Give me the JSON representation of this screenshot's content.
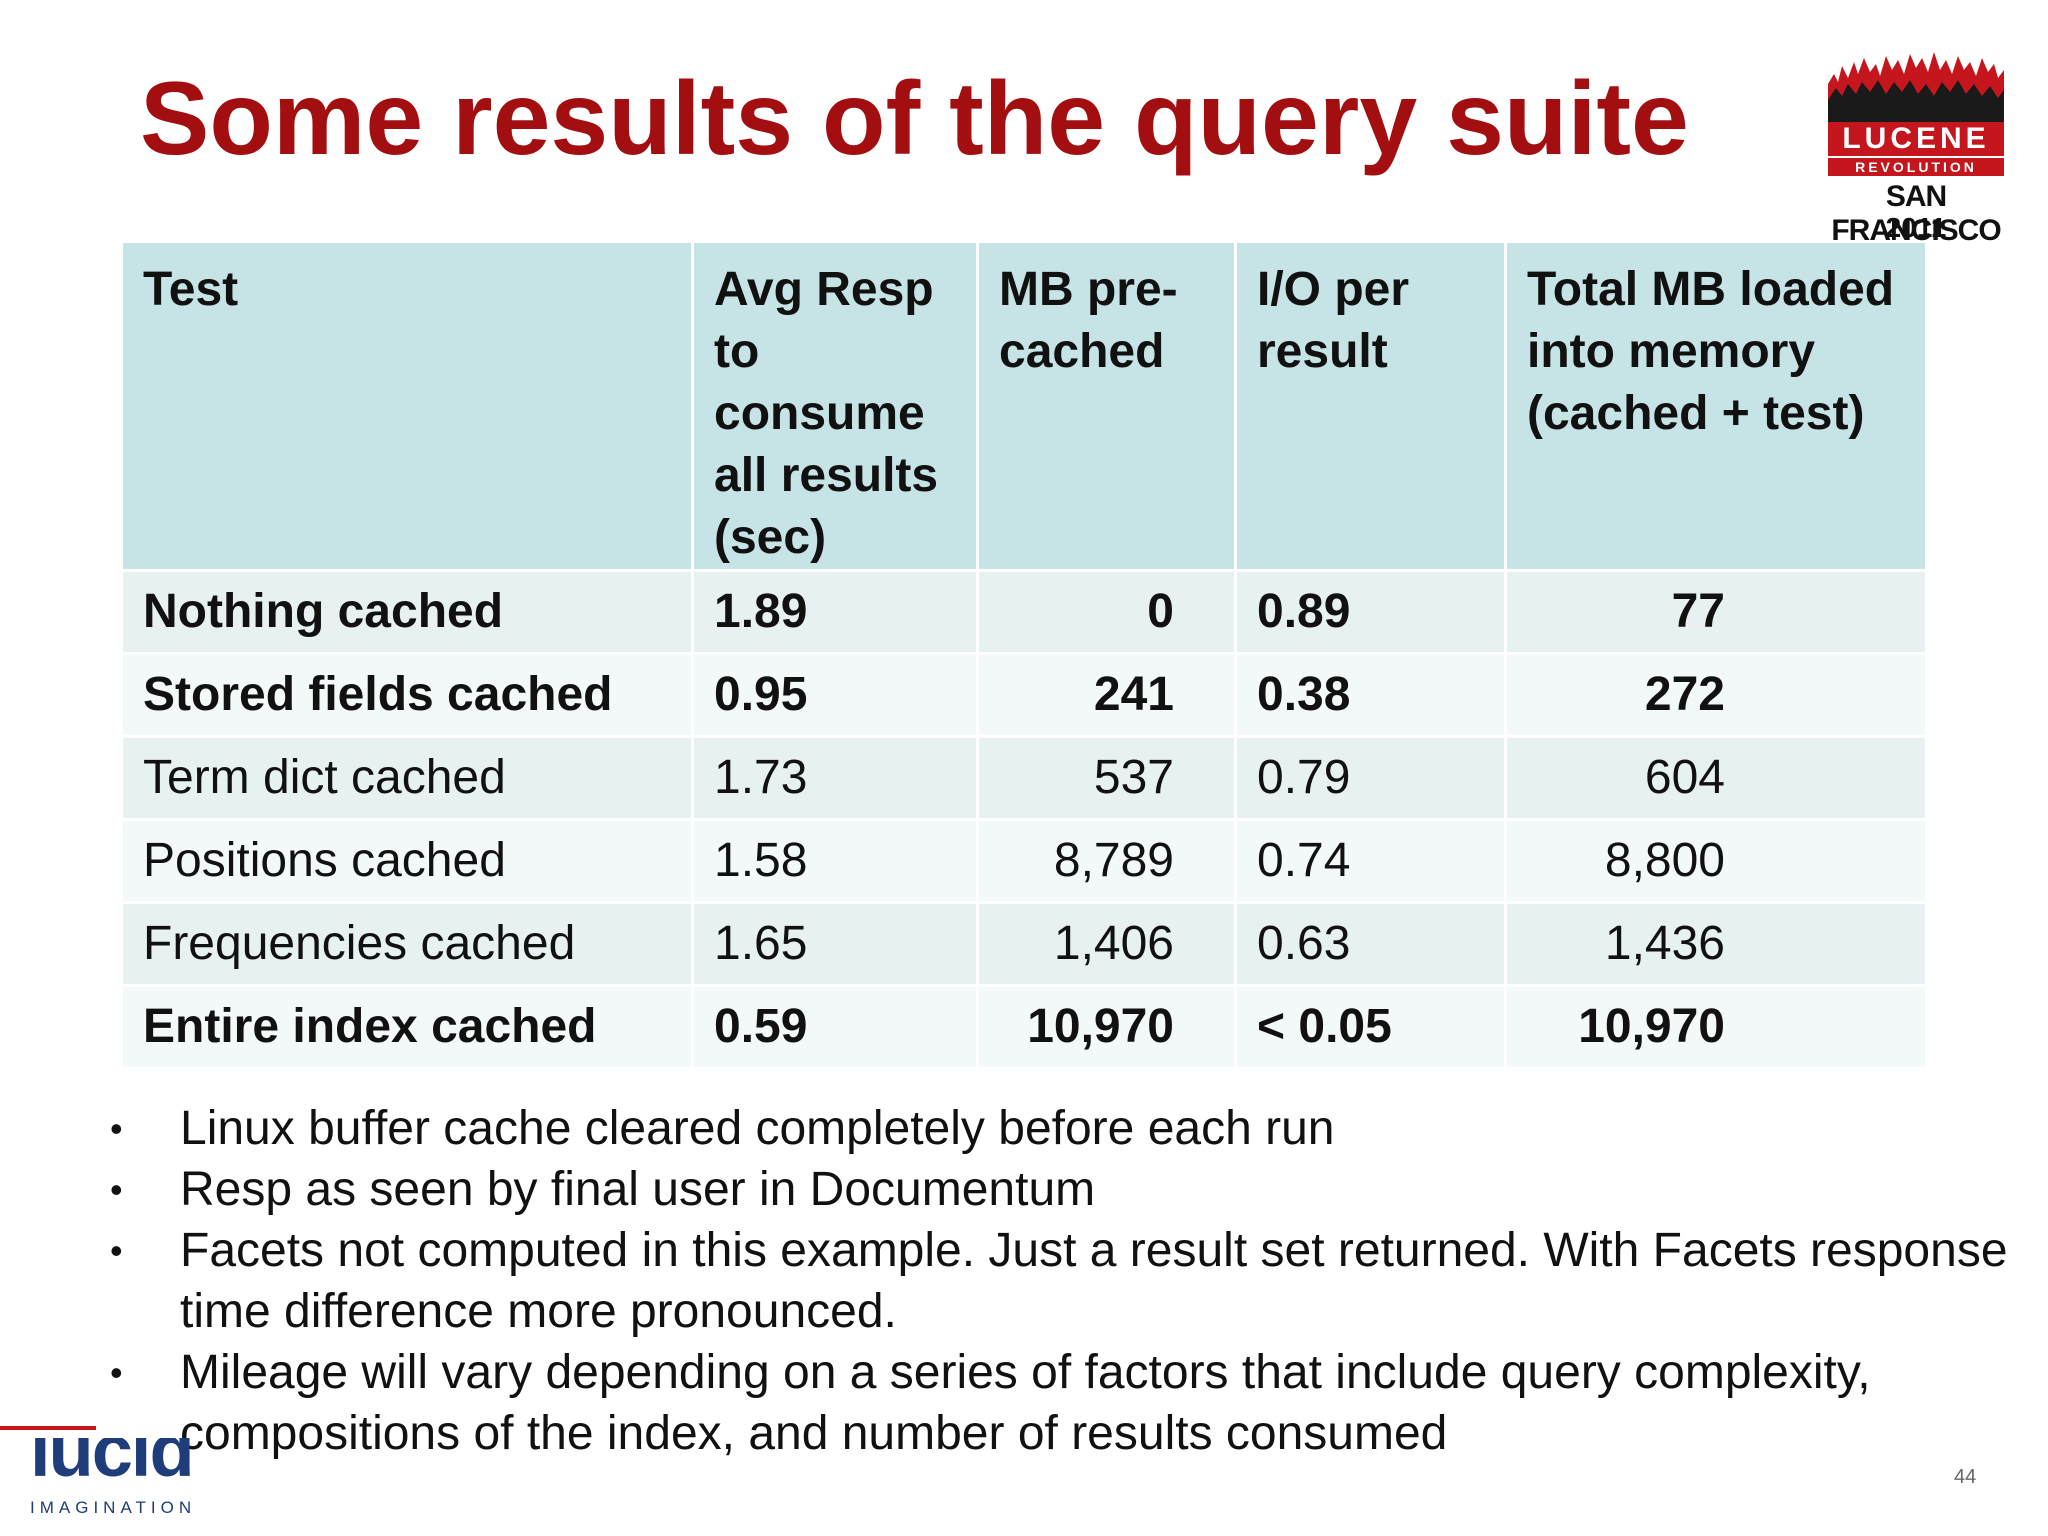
{
  "title": "Some results of the query suite",
  "event_logo": {
    "name": "LUCENE",
    "subtitle": "REVOLUTION",
    "city": "SAN FRANCISCO",
    "year": "2011",
    "accent": "#c4161c"
  },
  "table": {
    "headers": [
      "Test",
      "Avg Resp to consume all results (sec)",
      "MB pre-cached",
      "I/O per result",
      "Total MB loaded into memory (cached + test)"
    ],
    "rows": [
      {
        "test": "Nothing cached",
        "avg_resp": "1.89",
        "mb_precached": "0",
        "io_per_result": "0.89",
        "total_mb": "77"
      },
      {
        "test": "Stored fields cached",
        "avg_resp": "0.95",
        "mb_precached": "241",
        "io_per_result": "0.38",
        "total_mb": "272"
      },
      {
        "test": "Term dict cached",
        "avg_resp": "1.73",
        "mb_precached": "537",
        "io_per_result": "0.79",
        "total_mb": "604"
      },
      {
        "test": "Positions cached",
        "avg_resp": "1.58",
        "mb_precached": "8,789",
        "io_per_result": "0.74",
        "total_mb": "8,800"
      },
      {
        "test": "Frequencies cached",
        "avg_resp": "1.65",
        "mb_precached": "1,406",
        "io_per_result": "0.63",
        "total_mb": "1,436"
      },
      {
        "test": "Entire index cached",
        "avg_resp": "0.59",
        "mb_precached": "10,970",
        "io_per_result": "< 0.05",
        "total_mb": "10,970"
      }
    ],
    "header_color": "#c6e3e5"
  },
  "notes": [
    "Linux buffer cache cleared completely before each run",
    "Resp as seen by final user in Documentum",
    "Facets not computed in this example. Just a result set returned. With Facets response time difference more pronounced.",
    "Mileage will vary depending on a series of factors that include query complexity, compositions of the index, and number of results consumed"
  ],
  "footer": {
    "brand": "lucid",
    "tagline": "IMAGINATION",
    "slide_number": "44"
  },
  "colors": {
    "title": "#a30f10",
    "brand_blue": "#1f3d7a"
  }
}
